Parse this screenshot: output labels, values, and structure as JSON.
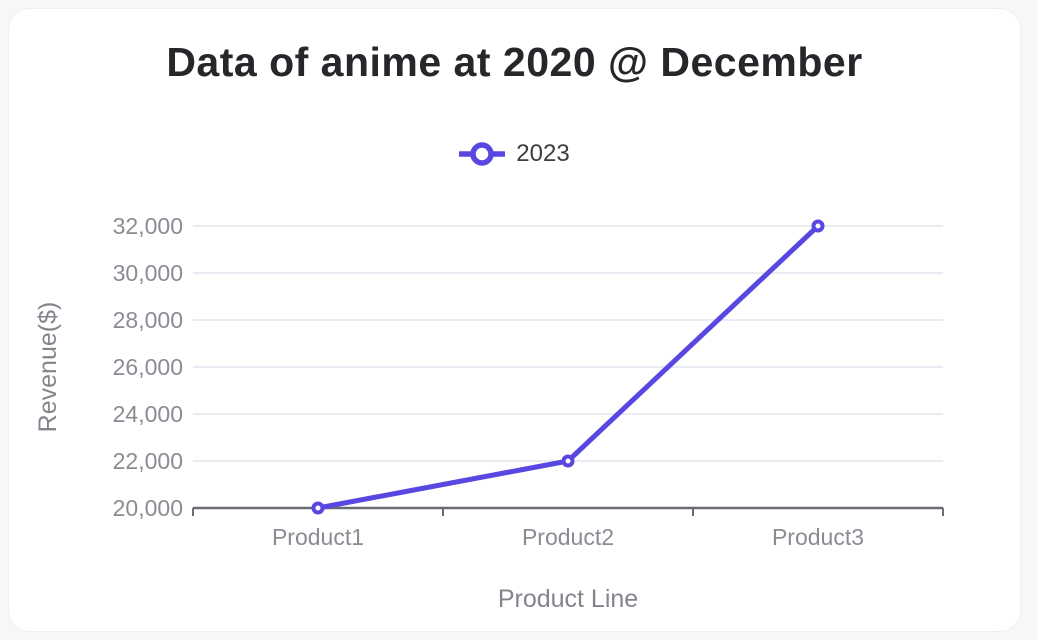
{
  "chart_data": {
    "type": "line",
    "title": "Data of anime at 2020 @ December",
    "categories": [
      "Product1",
      "Product2",
      "Product3"
    ],
    "series": [
      {
        "name": "2023",
        "values": [
          20000,
          22000,
          32000
        ]
      }
    ],
    "xlabel": "Product Line",
    "ylabel": "Revenue($)",
    "ylim": [
      20000,
      32000
    ],
    "yticks": [
      20000,
      22000,
      24000,
      26000,
      28000,
      30000,
      32000
    ],
    "ytick_labels": [
      "20,000",
      "22,000",
      "24,000",
      "26,000",
      "28,000",
      "30,000",
      "32,000"
    ],
    "grid": true,
    "legend_position": "top"
  },
  "colors": {
    "series": "#5847e0",
    "grid": "#e3e6f1",
    "axis": "#6b6b73",
    "tick_label": "#8b8b94",
    "axis_title": "#84848e",
    "title": "#26262b",
    "legend_text": "#3d3d44",
    "card_background": "#ffffff",
    "page_background": "#f5f7f9",
    "marker_fill": "#ffffff"
  }
}
